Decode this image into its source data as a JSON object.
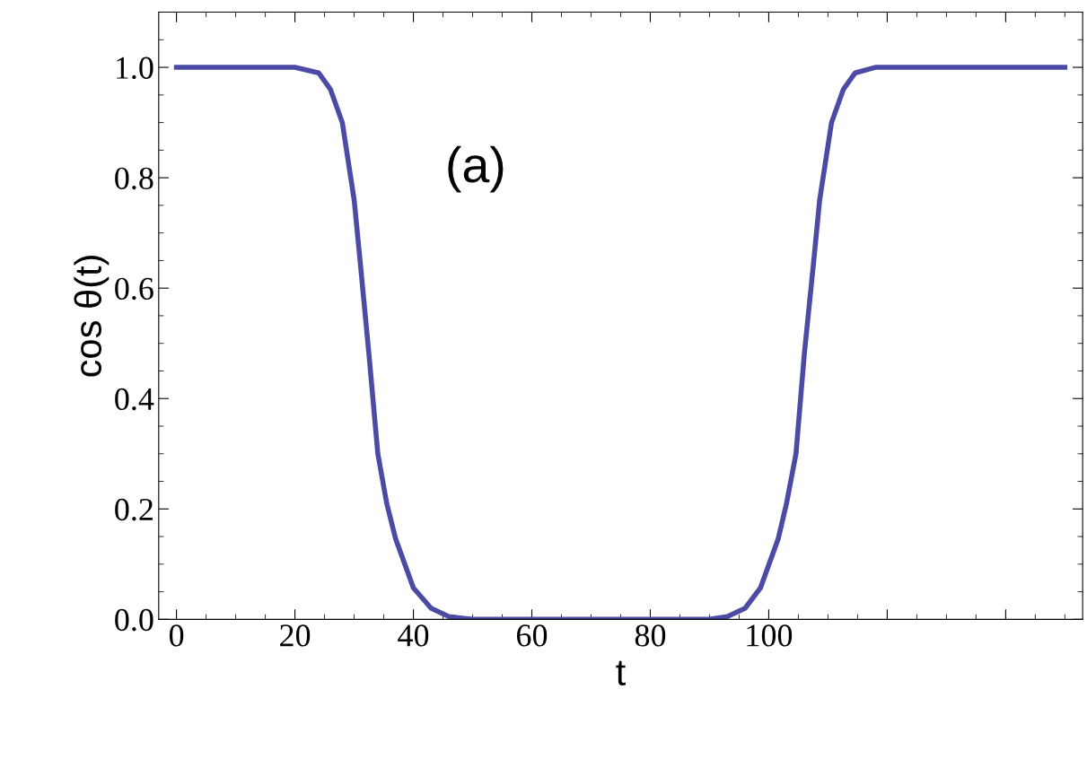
{
  "chart_data": {
    "type": "line",
    "xlabel": "t",
    "ylabel": "cos θ(t)",
    "annotations": [
      "(a)"
    ],
    "x": [
      0,
      20,
      24,
      26,
      28,
      30,
      31,
      32.5,
      34,
      35.5,
      37,
      40,
      43,
      46,
      50,
      90,
      93,
      96,
      98.6,
      101.6,
      103,
      104.6,
      106,
      107.6,
      108.6,
      110.6,
      112.6,
      114.6,
      118,
      150
    ],
    "series": [
      {
        "color": "#4b4ba6",
        "values": [
          1,
          1,
          0.99,
          0.96,
          0.9,
          0.76,
          0.65,
          0.48,
          0.3,
          0.21,
          0.146,
          0.057,
          0.02,
          0.005,
          0,
          0,
          0.005,
          0.02,
          0.057,
          0.146,
          0.21,
          0.3,
          0.48,
          0.65,
          0.76,
          0.9,
          0.96,
          0.99,
          1,
          1
        ]
      }
    ],
    "xlim": [
      -3,
      153
    ],
    "ylim": [
      0,
      1.1
    ],
    "xticks": [
      0,
      20,
      40,
      60,
      80,
      100,
      {
        "value": 120,
        "label": null
      },
      {
        "value": 140,
        "label": null
      }
    ],
    "yticks": [
      {
        "value": 0,
        "label": "0.0"
      },
      {
        "value": 0.2,
        "label": "0.2"
      },
      {
        "value": 0.4,
        "label": "0.4"
      },
      {
        "value": 0.6,
        "label": "0.6"
      },
      {
        "value": 0.8,
        "label": "0.8"
      },
      {
        "value": 1,
        "label": "1.0"
      }
    ],
    "grid": false,
    "legend": false,
    "marker": "none",
    "line_style": "solid"
  }
}
